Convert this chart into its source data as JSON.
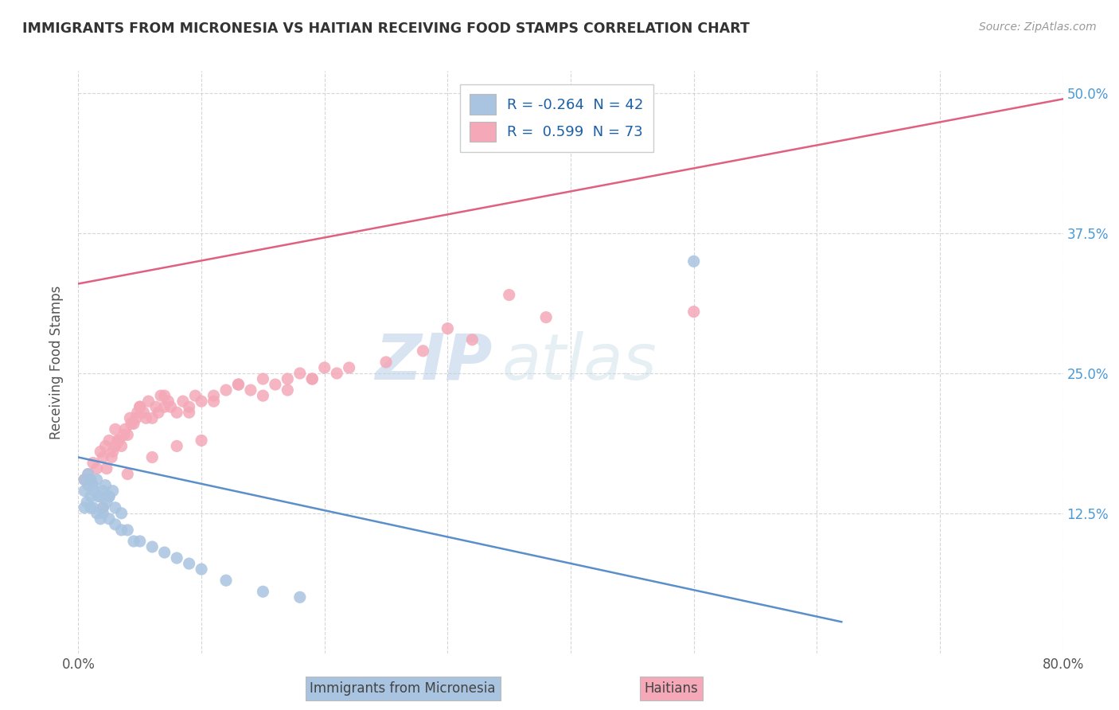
{
  "title": "IMMIGRANTS FROM MICRONESIA VS HAITIAN RECEIVING FOOD STAMPS CORRELATION CHART",
  "source": "Source: ZipAtlas.com",
  "ylabel": "Receiving Food Stamps",
  "xlim": [
    0.0,
    0.8
  ],
  "ylim": [
    0.0,
    0.52
  ],
  "ytick_labels_right": [
    "50.0%",
    "37.5%",
    "25.0%",
    "12.5%"
  ],
  "ytick_vals_right": [
    0.5,
    0.375,
    0.25,
    0.125
  ],
  "xtick_vals": [
    0.0,
    0.1,
    0.2,
    0.3,
    0.4,
    0.5,
    0.6,
    0.7,
    0.8
  ],
  "legend_R1": "R = -0.264",
  "legend_N1": "N = 42",
  "legend_R2": "R =  0.599",
  "legend_N2": "N = 73",
  "color_micronesia": "#a8c4e0",
  "color_haiti": "#f4a8b8",
  "color_micronesia_line": "#5b8fc9",
  "color_haiti_line": "#e06080",
  "background_color": "#ffffff",
  "grid_color": "#cccccc",
  "watermark_zip": "ZIP",
  "watermark_atlas": "atlas",
  "micronesia_scatter_x": [
    0.005,
    0.008,
    0.01,
    0.012,
    0.015,
    0.018,
    0.02,
    0.022,
    0.025,
    0.028,
    0.005,
    0.008,
    0.01,
    0.013,
    0.016,
    0.02,
    0.023,
    0.025,
    0.03,
    0.035,
    0.005,
    0.007,
    0.01,
    0.012,
    0.015,
    0.018,
    0.02,
    0.025,
    0.03,
    0.035,
    0.04,
    0.045,
    0.05,
    0.06,
    0.07,
    0.08,
    0.09,
    0.1,
    0.12,
    0.15,
    0.18,
    0.5
  ],
  "micronesia_scatter_y": [
    0.155,
    0.16,
    0.155,
    0.15,
    0.155,
    0.14,
    0.145,
    0.15,
    0.14,
    0.145,
    0.145,
    0.15,
    0.14,
    0.145,
    0.14,
    0.13,
    0.135,
    0.14,
    0.13,
    0.125,
    0.13,
    0.135,
    0.13,
    0.13,
    0.125,
    0.12,
    0.125,
    0.12,
    0.115,
    0.11,
    0.11,
    0.1,
    0.1,
    0.095,
    0.09,
    0.085,
    0.08,
    0.075,
    0.065,
    0.055,
    0.05,
    0.35
  ],
  "haiti_scatter_x": [
    0.005,
    0.008,
    0.01,
    0.012,
    0.015,
    0.018,
    0.02,
    0.022,
    0.025,
    0.028,
    0.03,
    0.032,
    0.035,
    0.038,
    0.04,
    0.042,
    0.045,
    0.048,
    0.05,
    0.055,
    0.06,
    0.065,
    0.07,
    0.075,
    0.08,
    0.085,
    0.09,
    0.095,
    0.1,
    0.11,
    0.12,
    0.13,
    0.14,
    0.15,
    0.16,
    0.17,
    0.18,
    0.19,
    0.2,
    0.22,
    0.03,
    0.05,
    0.07,
    0.09,
    0.11,
    0.13,
    0.15,
    0.17,
    0.19,
    0.21,
    0.023,
    0.027,
    0.033,
    0.037,
    0.043,
    0.047,
    0.053,
    0.057,
    0.063,
    0.067,
    0.073,
    0.25,
    0.3,
    0.35,
    0.5,
    0.02,
    0.04,
    0.06,
    0.08,
    0.1,
    0.28,
    0.32,
    0.38
  ],
  "haiti_scatter_y": [
    0.155,
    0.16,
    0.155,
    0.17,
    0.165,
    0.18,
    0.175,
    0.185,
    0.19,
    0.18,
    0.185,
    0.19,
    0.185,
    0.2,
    0.195,
    0.21,
    0.205,
    0.215,
    0.22,
    0.21,
    0.21,
    0.215,
    0.22,
    0.22,
    0.215,
    0.225,
    0.22,
    0.23,
    0.225,
    0.23,
    0.235,
    0.24,
    0.235,
    0.245,
    0.24,
    0.245,
    0.25,
    0.245,
    0.255,
    0.255,
    0.2,
    0.22,
    0.23,
    0.215,
    0.225,
    0.24,
    0.23,
    0.235,
    0.245,
    0.25,
    0.165,
    0.175,
    0.19,
    0.195,
    0.205,
    0.21,
    0.215,
    0.225,
    0.22,
    0.23,
    0.225,
    0.26,
    0.29,
    0.32,
    0.305,
    0.13,
    0.16,
    0.175,
    0.185,
    0.19,
    0.27,
    0.28,
    0.3
  ],
  "micronesia_line_x": [
    0.0,
    0.62
  ],
  "micronesia_line_y": [
    0.175,
    0.028
  ],
  "haiti_line_x": [
    0.0,
    0.8
  ],
  "haiti_line_y": [
    0.33,
    0.495
  ]
}
